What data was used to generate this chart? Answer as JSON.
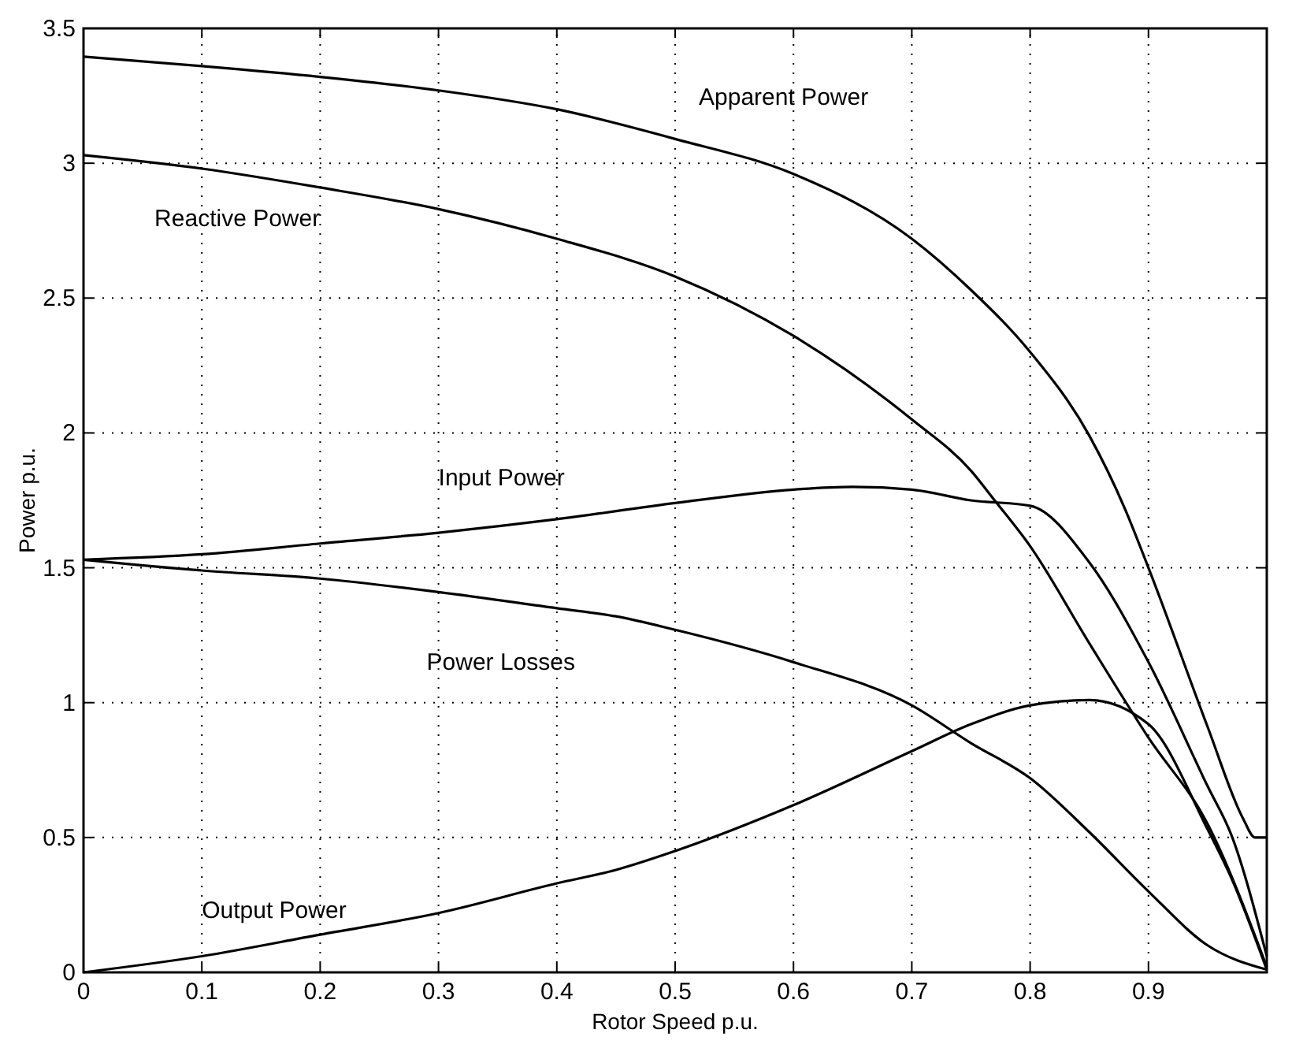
{
  "chart_data": {
    "type": "line",
    "xlabel": "Rotor Speed p.u.",
    "ylabel": "Power p.u.",
    "xlim": [
      0,
      1
    ],
    "ylim": [
      0,
      3.5
    ],
    "xticks": [
      0,
      0.1,
      0.2,
      0.3,
      0.4,
      0.5,
      0.6,
      0.7,
      0.8,
      0.9
    ],
    "yticks": [
      0,
      0.5,
      1,
      1.5,
      2,
      2.5,
      3,
      3.5
    ],
    "grid": true,
    "line_style": "solid",
    "marker": "none",
    "series": [
      {
        "name": "Apparent Power",
        "color": "#000000",
        "x": [
          0,
          0.1,
          0.2,
          0.3,
          0.4,
          0.5,
          0.6,
          0.7,
          0.75,
          0.8,
          0.85,
          0.88,
          0.9,
          0.95,
          0.98,
          0.99,
          1
        ],
        "values": [
          3.395,
          3.36,
          3.32,
          3.27,
          3.2,
          3.09,
          2.96,
          2.72,
          2.53,
          2.3,
          1.99,
          1.72,
          1.5,
          0.91,
          0.57,
          0.5,
          0.5
        ]
      },
      {
        "name": "Reactive Power",
        "color": "#000000",
        "x": [
          0,
          0.1,
          0.2,
          0.3,
          0.4,
          0.5,
          0.6,
          0.7,
          0.75,
          0.77,
          0.8,
          0.85,
          0.9,
          0.95,
          1
        ],
        "values": [
          3.03,
          2.98,
          2.91,
          2.83,
          2.72,
          2.58,
          2.36,
          2.05,
          1.86,
          1.75,
          1.58,
          1.22,
          0.87,
          0.55,
          0.02
        ]
      },
      {
        "name": "Input Power",
        "color": "#000000",
        "x": [
          0,
          0.1,
          0.2,
          0.3,
          0.4,
          0.5,
          0.6,
          0.65,
          0.7,
          0.75,
          0.8,
          0.85,
          0.9,
          0.95,
          0.97,
          1
        ],
        "values": [
          1.53,
          1.55,
          1.59,
          1.63,
          1.68,
          1.74,
          1.79,
          1.8,
          1.79,
          1.75,
          1.73,
          1.52,
          1.15,
          0.69,
          0.51,
          0.06
        ]
      },
      {
        "name": "Power Losses",
        "color": "#000000",
        "x": [
          0,
          0.1,
          0.2,
          0.3,
          0.4,
          0.45,
          0.5,
          0.6,
          0.7,
          0.75,
          0.8,
          0.85,
          0.9,
          0.95,
          1
        ],
        "values": [
          1.53,
          1.49,
          1.46,
          1.41,
          1.35,
          1.32,
          1.27,
          1.15,
          0.99,
          0.85,
          0.72,
          0.52,
          0.3,
          0.1,
          0.01
        ]
      },
      {
        "name": "Output Power",
        "color": "#000000",
        "x": [
          0,
          0.1,
          0.2,
          0.3,
          0.4,
          0.45,
          0.5,
          0.6,
          0.7,
          0.75,
          0.8,
          0.85,
          0.9,
          0.95,
          0.97,
          1
        ],
        "values": [
          0,
          0.06,
          0.14,
          0.22,
          0.33,
          0.38,
          0.45,
          0.62,
          0.82,
          0.92,
          0.99,
          1.01,
          0.92,
          0.53,
          0.35,
          0.01
        ]
      }
    ]
  }
}
